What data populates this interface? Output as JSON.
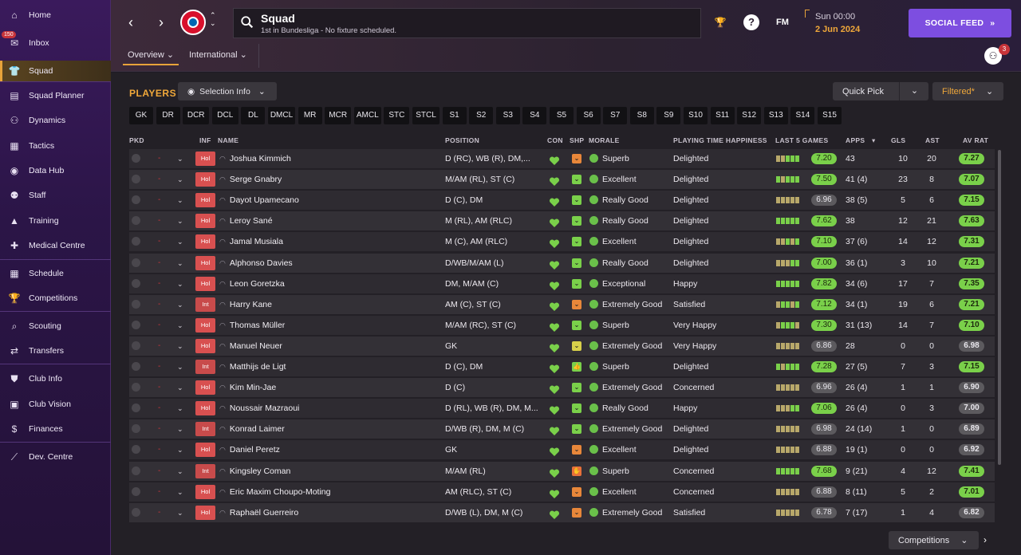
{
  "sidebar": {
    "items": [
      {
        "label": "Home",
        "icon": "home-icon",
        "glyph": "⌂"
      },
      {
        "label": "Inbox",
        "icon": "inbox-icon",
        "glyph": "✉",
        "badge": "150"
      },
      {
        "label": "Squad",
        "icon": "squad-icon",
        "glyph": "👕",
        "active": true
      },
      {
        "label": "Squad Planner",
        "icon": "squad-planner-icon",
        "glyph": "▤"
      },
      {
        "label": "Dynamics",
        "icon": "dynamics-icon",
        "glyph": "⚇"
      },
      {
        "label": "Tactics",
        "icon": "tactics-icon",
        "glyph": "▦"
      },
      {
        "label": "Data Hub",
        "icon": "data-hub-icon",
        "glyph": "◉"
      },
      {
        "label": "Staff",
        "icon": "staff-icon",
        "glyph": "⚉"
      },
      {
        "label": "Training",
        "icon": "training-icon",
        "glyph": "▲"
      },
      {
        "label": "Medical Centre",
        "icon": "medical-icon",
        "glyph": "✚"
      },
      {
        "label": "Schedule",
        "icon": "schedule-icon",
        "glyph": "▦"
      },
      {
        "label": "Competitions",
        "icon": "trophy-icon",
        "glyph": "🏆"
      },
      {
        "label": "Scouting",
        "icon": "scouting-icon",
        "glyph": "⌕"
      },
      {
        "label": "Transfers",
        "icon": "transfers-icon",
        "glyph": "⇄"
      },
      {
        "label": "Club Info",
        "icon": "club-info-icon",
        "glyph": "⛊"
      },
      {
        "label": "Club Vision",
        "icon": "club-vision-icon",
        "glyph": "▣"
      },
      {
        "label": "Finances",
        "icon": "finances-icon",
        "glyph": "$"
      },
      {
        "label": "Dev. Centre",
        "icon": "dev-centre-icon",
        "glyph": "⟋"
      }
    ]
  },
  "header": {
    "title": "Squad",
    "subtitle": "1st in Bundesliga - No fixture scheduled.",
    "fm": "FM",
    "time": "Sun 00:00",
    "date": "2 Jun 2024",
    "social_label": "SOCIAL FEED",
    "people_badge": "3",
    "tabs": [
      "Overview",
      "International"
    ]
  },
  "toolbar": {
    "players_label": "PLAYERS",
    "selection_label": "Selection Info",
    "quick_pick": "Quick Pick",
    "filtered": "Filtered*",
    "competitions": "Competitions"
  },
  "positions": [
    "GK",
    "DR",
    "DCR",
    "DCL",
    "DL",
    "DMCL",
    "MR",
    "MCR",
    "AMCL",
    "STC",
    "STCL",
    "S1",
    "S2",
    "S3",
    "S4",
    "S5",
    "S6",
    "S7",
    "S8",
    "S9",
    "S10",
    "S11",
    "S12",
    "S13",
    "S14",
    "S15"
  ],
  "columns": {
    "pkd": "PKD",
    "inf": "INF",
    "name": "NAME",
    "position": "POSITION",
    "con": "CON",
    "shp": "SHP",
    "morale": "MORALE",
    "pth": "PLAYING TIME HAPPINESS",
    "last5": "LAST 5 GAMES",
    "apps": "APPS",
    "gls": "GLS",
    "ast": "AST",
    "avrat": "AV RAT"
  },
  "colors": {
    "accent": "#f0a83a",
    "social": "#7d4ee0",
    "good": "#7ad04a",
    "neutral": "#5c5a5e"
  },
  "players": [
    {
      "inf": "Hol",
      "name": "Joshua Kimmich",
      "pos": "D (RC), WB (R), DM,...",
      "shp": "orange",
      "morale": "Superb",
      "pth": "Delighted",
      "l5": "7.20",
      "l5g": true,
      "apps": "43",
      "gls": "10",
      "ast": "20",
      "av": "7.27",
      "avg": true,
      "form": [
        "m",
        "m",
        "g",
        "g",
        "g"
      ]
    },
    {
      "inf": "Hol",
      "name": "Serge Gnabry",
      "pos": "M/AM (RL), ST (C)",
      "shp": "green",
      "morale": "Excellent",
      "pth": "Delighted",
      "l5": "7.50",
      "l5g": true,
      "apps": "41 (4)",
      "gls": "23",
      "ast": "8",
      "av": "7.07",
      "avg": true,
      "form": [
        "g",
        "m",
        "g",
        "g",
        "g"
      ]
    },
    {
      "inf": "Hol",
      "name": "Dayot Upamecano",
      "pos": "D (C), DM",
      "shp": "green",
      "morale": "Really Good",
      "pth": "Delighted",
      "l5": "6.96",
      "l5g": false,
      "apps": "38 (5)",
      "gls": "5",
      "ast": "6",
      "av": "7.15",
      "avg": true,
      "form": [
        "m",
        "m",
        "m",
        "m",
        "m"
      ]
    },
    {
      "inf": "Hol",
      "name": "Leroy Sané",
      "pos": "M (RL), AM (RLC)",
      "shp": "green",
      "morale": "Really Good",
      "pth": "Delighted",
      "l5": "7.62",
      "l5g": true,
      "apps": "38",
      "gls": "12",
      "ast": "21",
      "av": "7.63",
      "avg": true,
      "form": [
        "g",
        "g",
        "g",
        "g",
        "g"
      ]
    },
    {
      "inf": "Hol",
      "name": "Jamal Musiala",
      "pos": "M (C), AM (RLC)",
      "shp": "green",
      "morale": "Excellent",
      "pth": "Delighted",
      "l5": "7.10",
      "l5g": true,
      "apps": "37 (6)",
      "gls": "14",
      "ast": "12",
      "av": "7.31",
      "avg": true,
      "form": [
        "m",
        "m",
        "g",
        "m",
        "g"
      ]
    },
    {
      "inf": "Hol",
      "name": "Alphonso Davies",
      "pos": "D/WB/M/AM (L)",
      "shp": "green",
      "morale": "Really Good",
      "pth": "Delighted",
      "l5": "7.00",
      "l5g": true,
      "apps": "36 (1)",
      "gls": "3",
      "ast": "10",
      "av": "7.21",
      "avg": true,
      "form": [
        "m",
        "m",
        "m",
        "g",
        "g"
      ]
    },
    {
      "inf": "Hol",
      "name": "Leon Goretzka",
      "pos": "DM, M/AM (C)",
      "shp": "green",
      "morale": "Exceptional",
      "pth": "Happy",
      "l5": "7.82",
      "l5g": true,
      "apps": "34 (6)",
      "gls": "17",
      "ast": "7",
      "av": "7.35",
      "avg": true,
      "form": [
        "g",
        "g",
        "g",
        "g",
        "g"
      ]
    },
    {
      "inf": "Int",
      "name": "Harry Kane",
      "pos": "AM (C), ST (C)",
      "shp": "orange",
      "morale": "Extremely Good",
      "pth": "Satisfied",
      "l5": "7.12",
      "l5g": true,
      "apps": "34 (1)",
      "gls": "19",
      "ast": "6",
      "av": "7.21",
      "avg": true,
      "form": [
        "m",
        "g",
        "g",
        "m",
        "g"
      ]
    },
    {
      "inf": "Hol",
      "name": "Thomas Müller",
      "pos": "M/AM (RC), ST (C)",
      "shp": "green",
      "morale": "Superb",
      "pth": "Very Happy",
      "l5": "7.30",
      "l5g": true,
      "apps": "31 (13)",
      "gls": "14",
      "ast": "7",
      "av": "7.10",
      "avg": true,
      "form": [
        "m",
        "g",
        "g",
        "g",
        "m"
      ]
    },
    {
      "inf": "Hol",
      "name": "Manuel Neuer",
      "pos": "GK",
      "shp": "yellow",
      "morale": "Extremely Good",
      "pth": "Very Happy",
      "l5": "6.86",
      "l5g": false,
      "apps": "28",
      "gls": "0",
      "ast": "0",
      "av": "6.98",
      "avg": false,
      "form": [
        "m",
        "m",
        "m",
        "m",
        "m"
      ]
    },
    {
      "inf": "Int",
      "name": "Matthijs de Ligt",
      "pos": "D (C), DM",
      "shp": "thumb",
      "morale": "Superb",
      "pth": "Delighted",
      "l5": "7.28",
      "l5g": true,
      "apps": "27 (5)",
      "gls": "7",
      "ast": "3",
      "av": "7.15",
      "avg": true,
      "form": [
        "g",
        "m",
        "g",
        "g",
        "g"
      ]
    },
    {
      "inf": "Hol",
      "name": "Kim Min-Jae",
      "pos": "D (C)",
      "shp": "green",
      "morale": "Extremely Good",
      "pth": "Concerned",
      "l5": "6.96",
      "l5g": false,
      "apps": "26 (4)",
      "gls": "1",
      "ast": "1",
      "av": "6.90",
      "avg": false,
      "form": [
        "m",
        "m",
        "m",
        "m",
        "m"
      ]
    },
    {
      "inf": "Hol",
      "name": "Noussair Mazraoui",
      "pos": "D (RL), WB (R), DM, M...",
      "shp": "green",
      "morale": "Really Good",
      "pth": "Happy",
      "l5": "7.06",
      "l5g": true,
      "apps": "26 (4)",
      "gls": "0",
      "ast": "3",
      "av": "7.00",
      "avg": false,
      "form": [
        "m",
        "m",
        "m",
        "g",
        "g"
      ]
    },
    {
      "inf": "Int",
      "name": "Konrad Laimer",
      "pos": "D/WB (R), DM, M (C)",
      "shp": "green",
      "morale": "Extremely Good",
      "pth": "Delighted",
      "l5": "6.98",
      "l5g": false,
      "apps": "24 (14)",
      "gls": "1",
      "ast": "0",
      "av": "6.89",
      "avg": false,
      "form": [
        "m",
        "m",
        "m",
        "m",
        "m"
      ]
    },
    {
      "inf": "Hol",
      "name": "Daniel Peretz",
      "pos": "GK",
      "shp": "orange",
      "morale": "Excellent",
      "pth": "Delighted",
      "l5": "6.88",
      "l5g": false,
      "apps": "19 (1)",
      "gls": "0",
      "ast": "0",
      "av": "6.92",
      "avg": false,
      "form": [
        "m",
        "m",
        "m",
        "m",
        "m"
      ]
    },
    {
      "inf": "Int",
      "name": "Kingsley Coman",
      "pos": "M/AM (RL)",
      "shp": "red",
      "morale": "Superb",
      "pth": "Concerned",
      "l5": "7.68",
      "l5g": true,
      "apps": "9 (21)",
      "gls": "4",
      "ast": "12",
      "av": "7.41",
      "avg": true,
      "form": [
        "g",
        "g",
        "g",
        "g",
        "g"
      ]
    },
    {
      "inf": "Hol",
      "name": "Eric Maxim Choupo-Moting",
      "pos": "AM (RLC), ST (C)",
      "shp": "orange",
      "morale": "Excellent",
      "pth": "Concerned",
      "l5": "6.88",
      "l5g": false,
      "apps": "8 (11)",
      "gls": "5",
      "ast": "2",
      "av": "7.01",
      "avg": true,
      "form": [
        "m",
        "m",
        "m",
        "m",
        "m"
      ]
    },
    {
      "inf": "Hol",
      "name": "Raphaël Guerreiro",
      "pos": "D/WB (L), DM, M (C)",
      "shp": "orange",
      "morale": "Extremely Good",
      "pth": "Satisfied",
      "l5": "6.78",
      "l5g": false,
      "apps": "7 (17)",
      "gls": "1",
      "ast": "4",
      "av": "6.82",
      "avg": false,
      "form": [
        "m",
        "m",
        "m",
        "m",
        "m"
      ]
    }
  ]
}
